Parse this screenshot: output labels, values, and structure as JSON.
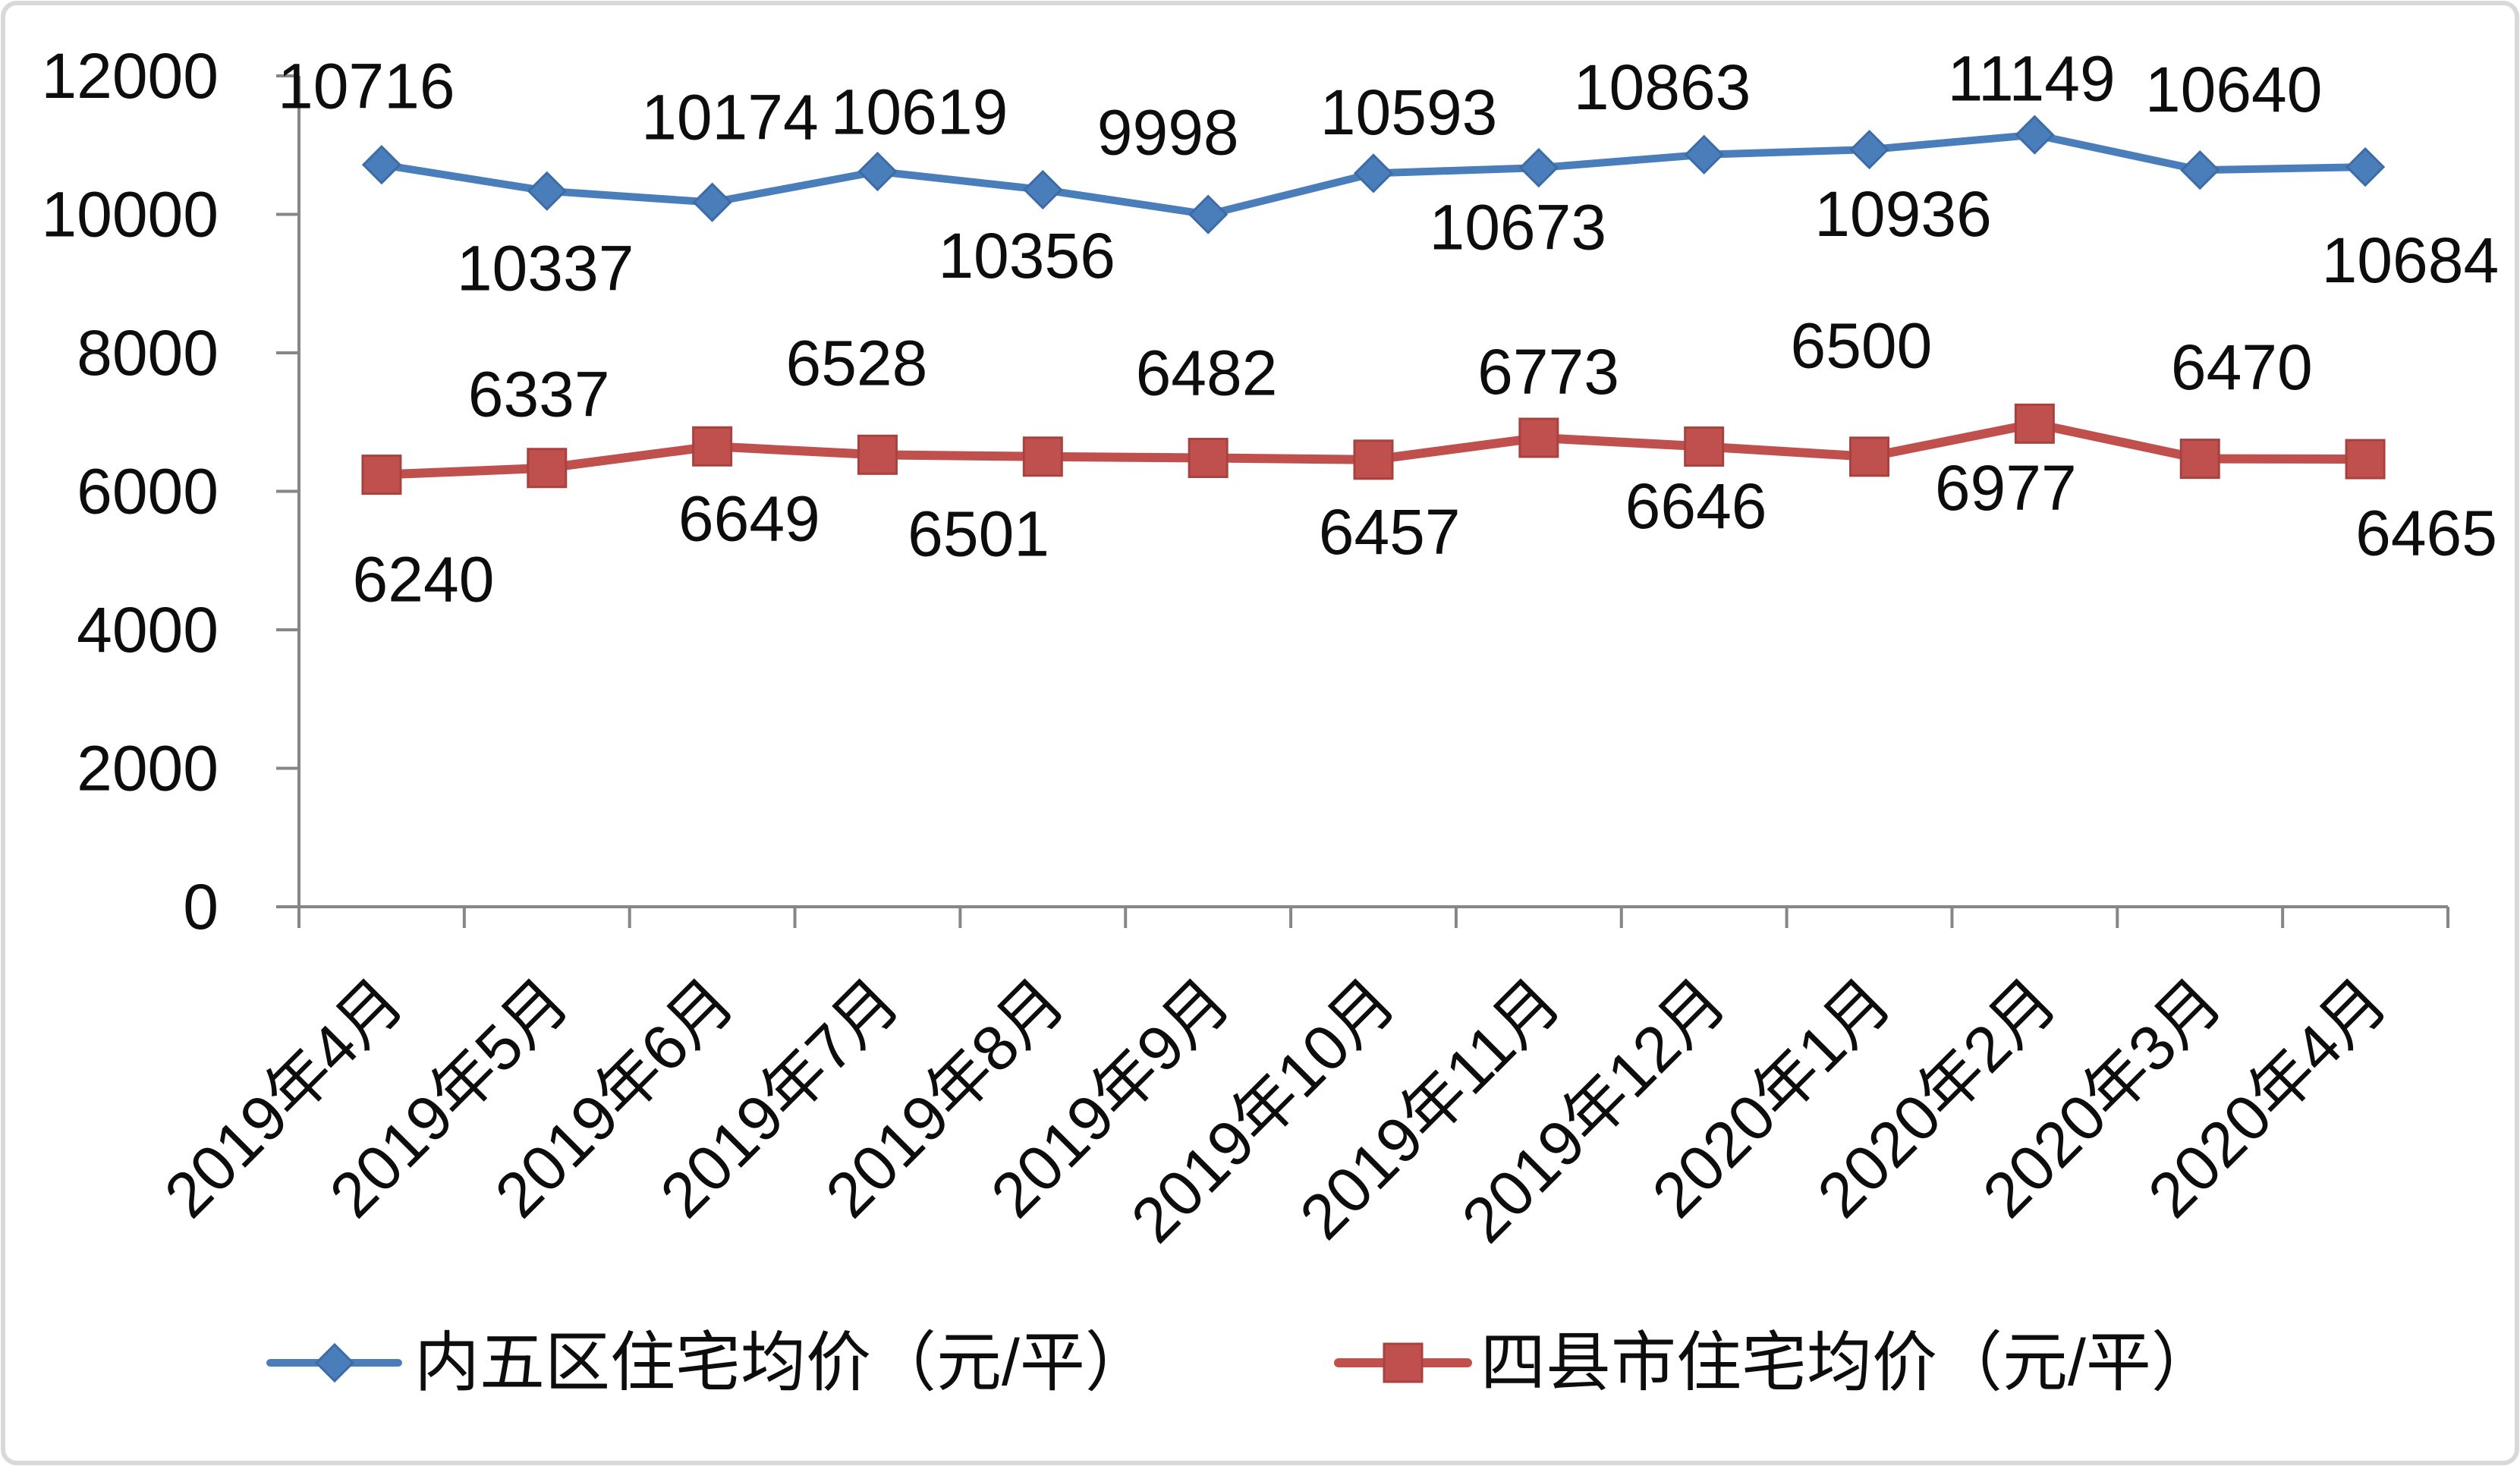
{
  "chart_data": {
    "type": "line",
    "categories": [
      "2019年4月",
      "2019年5月",
      "2019年6月",
      "2019年7月",
      "2019年8月",
      "2019年9月",
      "2019年10月",
      "2019年11月",
      "2019年12月",
      "2020年1月",
      "2020年2月",
      "2020年3月",
      "2020年4月"
    ],
    "ylim": [
      0,
      12000
    ],
    "yticks": [
      0,
      2000,
      4000,
      6000,
      8000,
      10000,
      12000
    ],
    "grid": false,
    "legend_position": "bottom",
    "series": [
      {
        "name": "内五区住宅均价（元/平）",
        "color": "#4A7EBB",
        "values": [
          10716,
          10337,
          10174,
          10619,
          10356,
          9998,
          10593,
          10673,
          10863,
          10936,
          11149,
          10640,
          10684
        ]
      },
      {
        "name": "四县市住宅均价（元/平）",
        "color": "#C0504D",
        "values": [
          6240,
          6337,
          6649,
          6528,
          6501,
          6482,
          6457,
          6773,
          6646,
          6500,
          6977,
          6470,
          6465
        ]
      }
    ]
  }
}
